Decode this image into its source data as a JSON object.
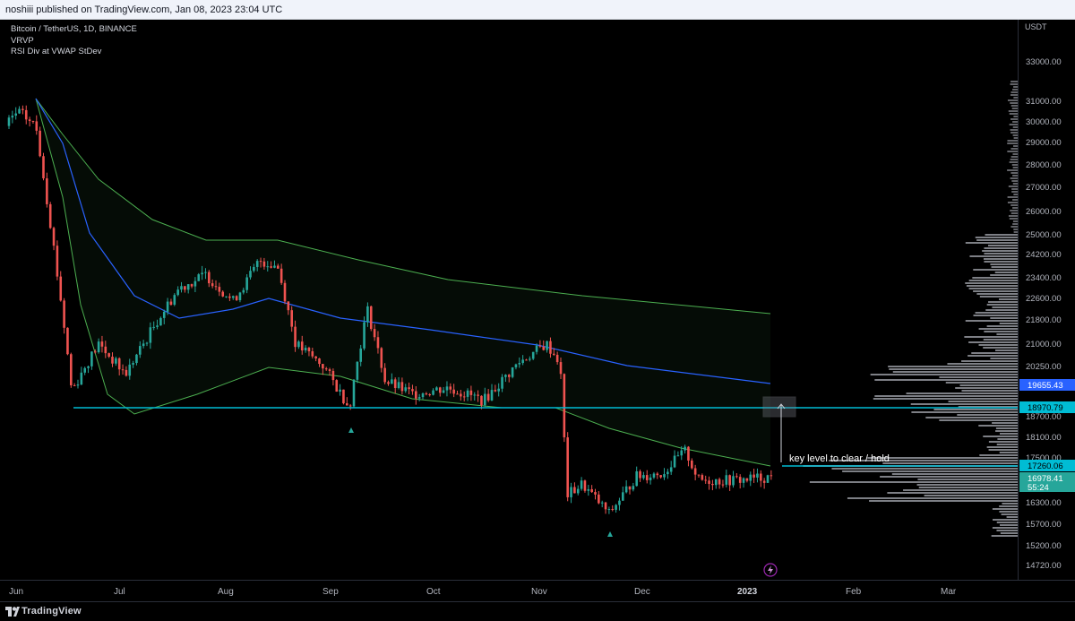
{
  "header": {
    "publish_line": "noshiii published on TradingView.com, Jan 08, 2023 23:04 UTC"
  },
  "legend": {
    "symbol": "Bitcoin / TetherUS, 1D, BINANCE",
    "indicator_1": "VRVP",
    "indicator_2": "RSI Div at VWAP StDev"
  },
  "price_axis": {
    "currency": "USDT",
    "ticks": [
      "33000.00",
      "31000.00",
      "30000.00",
      "29000.00",
      "28000.00",
      "27000.00",
      "26000.00",
      "25000.00",
      "24200.00",
      "23400.00",
      "22600.00",
      "21800.00",
      "21000.00",
      "20250.00",
      "18700.00",
      "18100.00",
      "17500.00",
      "16300.00",
      "15700.00",
      "15200.00",
      "14720.00"
    ],
    "label_vwap": "19655.43",
    "label_level": "18970.79",
    "label_key": "17260.06",
    "label_last": "16978.41",
    "label_countdown": "55:24"
  },
  "time_axis": {
    "labels": [
      "Jun",
      "Jul",
      "Aug",
      "Sep",
      "Oct",
      "Nov",
      "Dec",
      "2023",
      "Feb",
      "Mar"
    ]
  },
  "annotations": {
    "key_level_text": "key level to clear / hold"
  },
  "colors": {
    "candle_up": "#26a69a",
    "candle_down": "#ef5350",
    "vwap_line": "#2962ff",
    "band_line": "#4caf50",
    "level_line": "#00bcd4",
    "profile": "#b2b5be"
  },
  "footer": {
    "brand": "TradingView"
  },
  "icons": {
    "lightning": "lightning-icon",
    "logo": "tradingview-logo-icon",
    "arrow": "arrow-up-icon"
  }
}
